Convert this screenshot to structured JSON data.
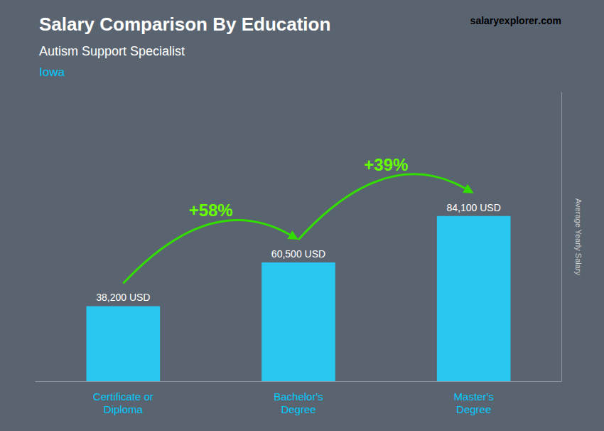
{
  "chart_data": {
    "type": "bar",
    "title": "Salary Comparison By Education",
    "subtitle": "Autism Support Specialist",
    "location": "Iowa",
    "ylabel": "Average Yearly Salary",
    "categories": [
      "Certificate or\nDiploma",
      "Bachelor's\nDegree",
      "Master's\nDegree"
    ],
    "values": [
      38200,
      60500,
      84100
    ],
    "value_labels": [
      "38,200 USD",
      "60,500 USD",
      "84,100 USD"
    ],
    "data_labels": true,
    "color": "#29c8f0",
    "ylim": [
      0,
      147000
    ],
    "yticks": [],
    "tick_labels": "x",
    "grid": false,
    "annotations": [
      "+58%",
      "+39%"
    ],
    "watermark": [
      "salary",
      "explorer",
      ".com"
    ]
  }
}
